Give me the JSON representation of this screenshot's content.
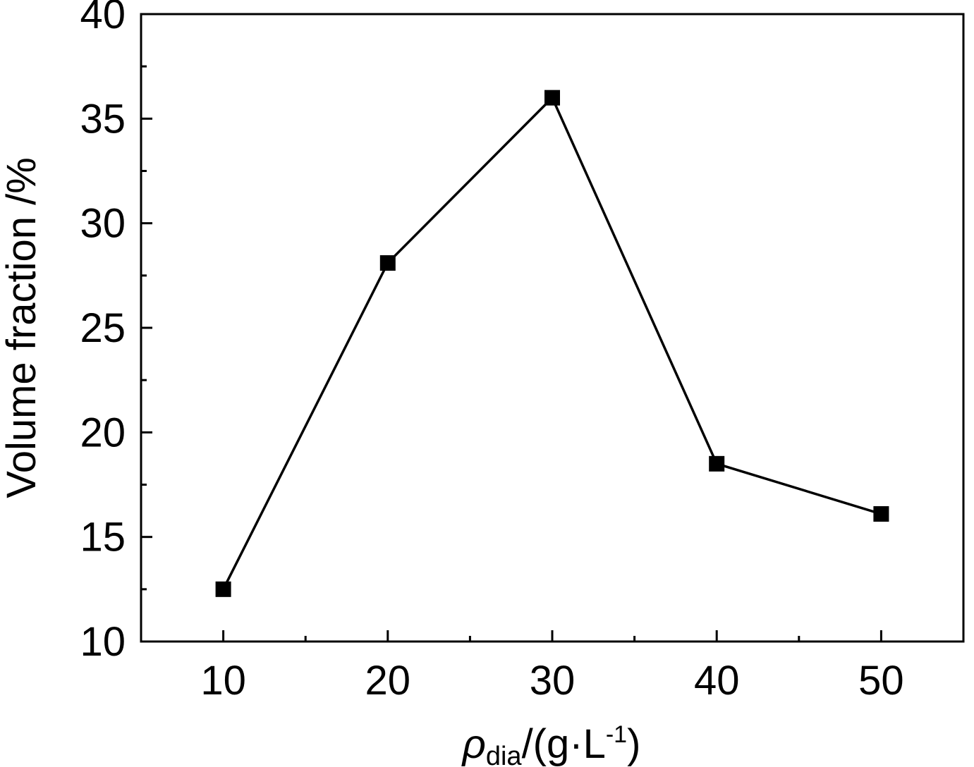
{
  "chart_data": {
    "type": "line",
    "title": "",
    "xlabel": {
      "symbol": "ρ",
      "subscript": "dia",
      "unit_prefix": "/(g·L",
      "unit_superscript": "-1",
      "unit_suffix": ")"
    },
    "ylabel": "Volume fraction /%",
    "xlim": [
      5,
      55
    ],
    "ylim": [
      10,
      40
    ],
    "x_ticks": [
      10,
      20,
      30,
      40,
      50
    ],
    "x_tick_labels": [
      "10",
      "20",
      "30",
      "40",
      "50"
    ],
    "y_ticks": [
      10,
      15,
      20,
      25,
      30,
      35,
      40
    ],
    "y_tick_labels": [
      "10",
      "15",
      "20",
      "25",
      "30",
      "35",
      "40"
    ],
    "grid": false,
    "legend": "none",
    "series": [
      {
        "x": [
          10,
          20,
          30,
          40,
          50
        ],
        "values": [
          12.5,
          28.1,
          36.0,
          18.5,
          16.1
        ],
        "marker": "square",
        "color": "#000000"
      }
    ]
  }
}
